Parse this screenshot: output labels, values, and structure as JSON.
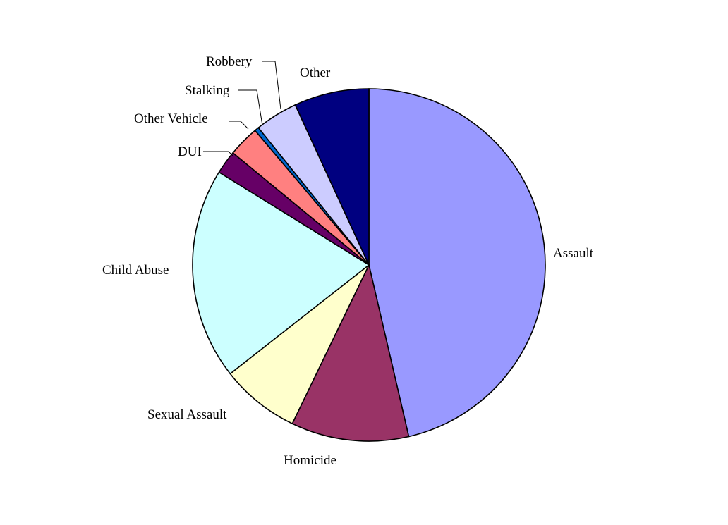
{
  "chart_data": {
    "type": "pie",
    "title": "",
    "start_angle_deg": 90,
    "direction": "clockwise",
    "slices": [
      {
        "label": "Assault",
        "value": 47.3,
        "color": "#9999ff"
      },
      {
        "label": "Homicide",
        "value": 11.0,
        "color": "#993366"
      },
      {
        "label": "Sexual Assault",
        "value": 7.4,
        "color": "#ffffcc"
      },
      {
        "label": "Child Abuse",
        "value": 19.8,
        "color": "#ccffff"
      },
      {
        "label": "DUI",
        "value": 2.2,
        "color": "#660066"
      },
      {
        "label": "Other Vehicle",
        "value": 2.9,
        "color": "#ff8080"
      },
      {
        "label": "Stalking",
        "value": 0.4,
        "color": "#0066cc"
      },
      {
        "label": "Robbery",
        "value": 4.0,
        "color": "#ccccff"
      },
      {
        "label": "Other",
        "value": 7.0,
        "color": "#000080"
      }
    ],
    "legend": "none",
    "data_labels": "category names outside slices"
  }
}
